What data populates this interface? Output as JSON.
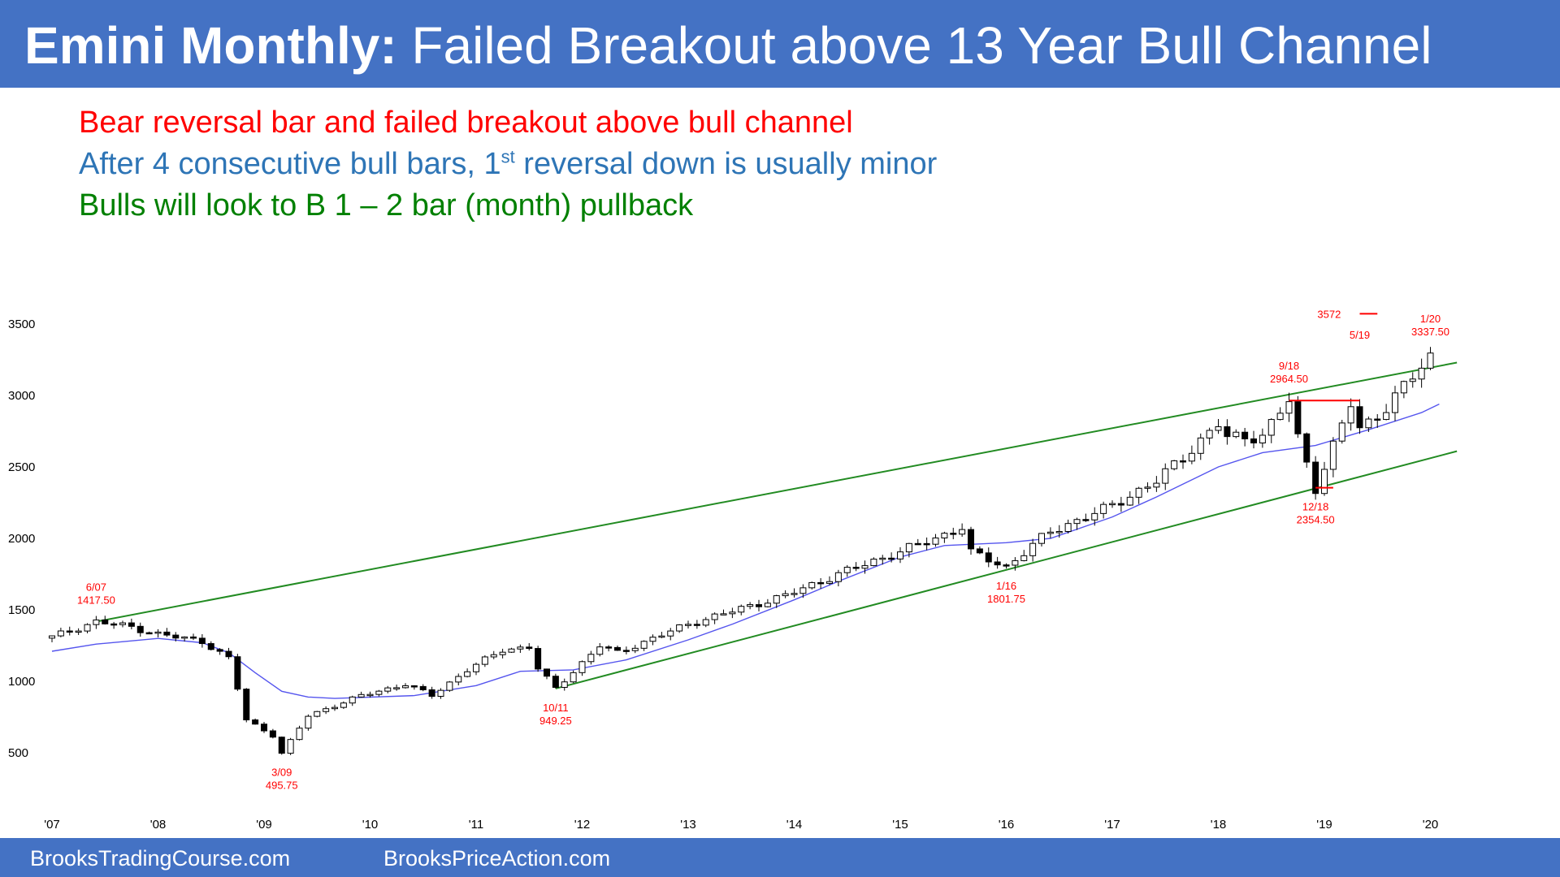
{
  "header": {
    "title_bold": "Emini Monthly:",
    "title_rest": "Failed Breakout above 13 Year Bull Channel",
    "bg_color": "#4472C4"
  },
  "notes": [
    {
      "text": "Bear reversal bar and failed breakout above bull channel",
      "color": "#FF0000"
    },
    {
      "text_before": "After 4 consecutive bull bars, 1",
      "sup": "st",
      "text_after": " reversal down is usually minor",
      "color": "#2E75B6"
    },
    {
      "text": "Bulls will look to B 1 – 2 bar (month) pullback",
      "color": "#008000"
    }
  ],
  "footer": {
    "left": "BrooksTradingCourse.com",
    "right": "BrooksPriceAction.com"
  },
  "chart_data": {
    "type": "candlestick",
    "title": "",
    "xlabel": "",
    "ylabel": "",
    "interval": "monthly",
    "x_range": [
      "2007-01",
      "2020-04"
    ],
    "y_ticks": [
      500,
      1000,
      1500,
      2000,
      2500,
      3000,
      3500
    ],
    "ylim": [
      250,
      3700
    ],
    "x_tick_labels": [
      "'07",
      "'08",
      "'09",
      "'10",
      "'11",
      "'12",
      "'13",
      "'14",
      "'15",
      "'16",
      "'17",
      "'18",
      "'19",
      "'20"
    ],
    "colors": {
      "bull_body": "#ffffff",
      "bear_body": "#000000",
      "wick": "#000000",
      "ema": "#5555EE",
      "channel": "#228B22",
      "annotation": "#FF0000"
    },
    "candles_path": [
      [
        "2007-01",
        1310
      ],
      [
        "2007-06",
        1417.5
      ],
      [
        "2007-10",
        1380
      ],
      [
        "2008-01",
        1330
      ],
      [
        "2008-06",
        1280
      ],
      [
        "2008-09",
        1160
      ],
      [
        "2008-10",
        950
      ],
      [
        "2008-11",
        730
      ],
      [
        "2009-02",
        620
      ],
      [
        "2009-03",
        495.75
      ],
      [
        "2009-06",
        760
      ],
      [
        "2009-12",
        900
      ],
      [
        "2010-05",
        980
      ],
      [
        "2010-08",
        900
      ],
      [
        "2010-12",
        1080
      ],
      [
        "2011-04",
        1220
      ],
      [
        "2011-07",
        1240
      ],
      [
        "2011-08",
        1090
      ],
      [
        "2011-10",
        949.25
      ],
      [
        "2012-03",
        1250
      ],
      [
        "2012-05",
        1200
      ],
      [
        "2013-01",
        1400
      ],
      [
        "2013-12",
        1600
      ],
      [
        "2014-06",
        1750
      ],
      [
        "2015-05",
        2000
      ],
      [
        "2015-08",
        2080
      ],
      [
        "2015-09",
        1900
      ],
      [
        "2016-01",
        1801.75
      ],
      [
        "2016-06",
        2050
      ],
      [
        "2016-12",
        2200
      ],
      [
        "2017-06",
        2400
      ],
      [
        "2018-01",
        2800
      ],
      [
        "2018-02",
        2700
      ],
      [
        "2018-06",
        2720
      ],
      [
        "2018-09",
        2964.5
      ],
      [
        "2018-10",
        2700
      ],
      [
        "2018-12",
        2354.5
      ],
      [
        "2019-04",
        2940
      ],
      [
        "2019-05",
        2760
      ],
      [
        "2019-08",
        2920
      ],
      [
        "2019-12",
        3200
      ],
      [
        "2020-01",
        3270
      ]
    ],
    "ema": [
      [
        "2007-01",
        1210
      ],
      [
        "2007-06",
        1260
      ],
      [
        "2008-01",
        1300
      ],
      [
        "2008-06",
        1270
      ],
      [
        "2008-09",
        1200
      ],
      [
        "2008-12",
        1060
      ],
      [
        "2009-03",
        930
      ],
      [
        "2009-06",
        890
      ],
      [
        "2009-09",
        880
      ],
      [
        "2010-06",
        900
      ],
      [
        "2011-01",
        970
      ],
      [
        "2011-06",
        1070
      ],
      [
        "2011-12",
        1080
      ],
      [
        "2012-06",
        1150
      ],
      [
        "2013-01",
        1290
      ],
      [
        "2013-06",
        1400
      ],
      [
        "2014-01",
        1570
      ],
      [
        "2014-06",
        1700
      ],
      [
        "2015-01",
        1870
      ],
      [
        "2015-06",
        1950
      ],
      [
        "2016-01",
        1970
      ],
      [
        "2016-06",
        2000
      ],
      [
        "2017-01",
        2150
      ],
      [
        "2017-06",
        2290
      ],
      [
        "2018-01",
        2500
      ],
      [
        "2018-06",
        2600
      ],
      [
        "2018-12",
        2650
      ],
      [
        "2019-06",
        2760
      ],
      [
        "2019-12",
        2880
      ],
      [
        "2020-02",
        2940
      ]
    ],
    "channel_lines": [
      {
        "name": "",
        "points": [
          [
            "2007-06",
            1417.5
          ],
          [
            "2020-04",
            3230
          ]
        ]
      },
      {
        "name": "",
        "points": [
          [
            "2011-10",
            949.25
          ],
          [
            "2020-04",
            2610
          ]
        ]
      }
    ],
    "horizontal_lines": [
      {
        "from": "2018-09",
        "to": "2019-05",
        "y": 2964.5
      },
      {
        "from": "2018-12",
        "to": "2019-02",
        "y": 2354.5
      },
      {
        "from": "2019-05",
        "to": "2019-07",
        "y": 3572
      }
    ],
    "annotations": [
      {
        "date": "6/07",
        "value": "1417.50",
        "x": "2007-06",
        "y": 1417.5
      },
      {
        "date": "3/09",
        "value": "495.75",
        "x": "2009-03",
        "y": 495.75
      },
      {
        "date": "10/11",
        "value": "949.25",
        "x": "2011-10",
        "y": 949.25
      },
      {
        "date": "1/16",
        "value": "1801.75",
        "x": "2016-01",
        "y": 1801.75
      },
      {
        "date": "9/18",
        "value": "2964.50",
        "x": "2018-09",
        "y": 2964.5
      },
      {
        "date": "12/18",
        "value": "2354.50",
        "x": "2018-12",
        "y": 2354.5
      },
      {
        "date": "5/19",
        "value": "",
        "x": "2019-05",
        "y": 3200
      },
      {
        "date": "1/20",
        "value": "3337.50",
        "x": "2020-01",
        "y": 3337.5
      },
      {
        "date": "3572",
        "value": "",
        "x": "2019-02",
        "y": 3572
      }
    ]
  }
}
